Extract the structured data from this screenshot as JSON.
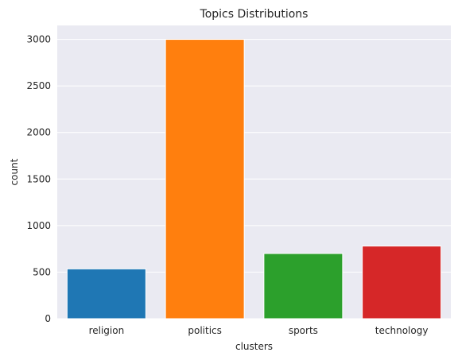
{
  "chart_data": {
    "type": "bar",
    "title": "Topics Distributions",
    "xlabel": "clusters",
    "ylabel": "count",
    "categories": [
      "religion",
      "politics",
      "sports",
      "technology"
    ],
    "values": [
      535,
      3000,
      700,
      780
    ],
    "colors": [
      "#1f77b4",
      "#ff7f0e",
      "#2ca02c",
      "#d62728"
    ],
    "ylim": [
      0,
      3150
    ],
    "yticks": [
      0,
      500,
      1000,
      1500,
      2000,
      2500,
      3000
    ],
    "grid": true,
    "background": "#eaeaf2",
    "gridcolor": "#ffffff"
  }
}
